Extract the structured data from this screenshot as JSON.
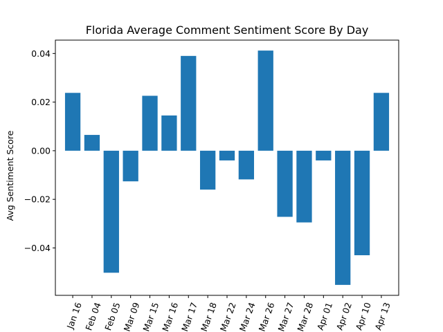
{
  "chart_data": {
    "type": "bar",
    "title": "Florida Average Comment Sentiment Score By Day",
    "xlabel": "",
    "ylabel": "Avg Sentiment Score",
    "categories": [
      "Jan 16",
      "Feb 04",
      "Feb 05",
      "Mar 09",
      "Mar 15",
      "Mar 16",
      "Mar 17",
      "Mar 18",
      "Mar 22",
      "Mar 24",
      "Mar 26",
      "Mar 27",
      "Mar 28",
      "Apr 01",
      "Apr 02",
      "Apr 10",
      "Apr 13"
    ],
    "values": [
      0.0238,
      0.0065,
      -0.0502,
      -0.0126,
      0.0226,
      0.0145,
      0.039,
      -0.016,
      -0.004,
      -0.0118,
      0.0412,
      -0.0272,
      -0.0295,
      -0.004,
      -0.0552,
      -0.043,
      0.0238
    ],
    "ylim": [
      -0.0595,
      0.0455
    ],
    "yticks": [
      -0.04,
      -0.02,
      0.0,
      0.02,
      0.04
    ],
    "ytick_labels": [
      "−0.04",
      "−0.02",
      "0.00",
      "0.02",
      "0.04"
    ],
    "bar_color": "#1f77b4",
    "grid": false,
    "legend": "none"
  }
}
